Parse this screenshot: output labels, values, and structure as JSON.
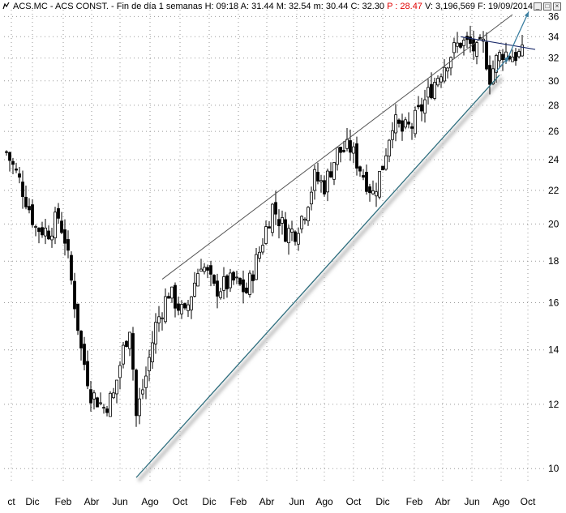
{
  "header": {
    "symbol": "ACS.MC - ACS CONST. - Fin de día 1 semanas",
    "h": "H: 09:18",
    "a": "A: 31.44",
    "m": "M: 32.54",
    "mn": "m: 30.44",
    "c": "C: 32.30",
    "p": "P : 28.47",
    "v": "V: 3,196,569",
    "f": "F: 19/09/2014"
  },
  "colors": {
    "price_bars": "#000000",
    "upper_line": "#555555",
    "support_line": "#2e6e7e",
    "arrow": "#3a7ea0",
    "neg_text": "#e00000"
  },
  "chart_data": {
    "type": "ohlc",
    "ylog": true,
    "ylim": [
      9.6,
      36.7
    ],
    "yticks": [
      10,
      12,
      14,
      16,
      18,
      20,
      22,
      24,
      26,
      28,
      30,
      32,
      34,
      36
    ],
    "xticks": [
      "Oct",
      "Dic",
      "Feb",
      "Abr",
      "Jun",
      "Ago",
      "Oct",
      "Dic",
      "Feb",
      "Abr",
      "Jun",
      "Ago",
      "Oct",
      "Dic",
      "Feb",
      "Abr",
      "Jun",
      "Ago",
      "Oct"
    ],
    "xticks_display": [
      "ct",
      "Dic",
      "Feb",
      "Abr",
      "Jun",
      "Ago",
      "Oct",
      "Dic",
      "Feb",
      "Abr",
      "Jun",
      "Ago",
      "Oct",
      "Dic",
      "Feb",
      "Abr",
      "Jun",
      "Ago",
      "Oct"
    ],
    "grid": true,
    "weeks": 159,
    "close_path": [
      [
        0,
        24.5
      ],
      [
        4,
        22.6
      ],
      [
        9,
        19.8
      ],
      [
        13,
        19.6
      ],
      [
        16,
        20.4
      ],
      [
        18,
        19.2
      ],
      [
        20,
        17.0
      ],
      [
        23,
        14.0
      ],
      [
        26,
        12.4
      ],
      [
        30,
        11.9
      ],
      [
        33,
        12.3
      ],
      [
        36,
        14.0
      ],
      [
        38,
        15.0
      ],
      [
        40,
        11.6
      ],
      [
        43,
        13.0
      ],
      [
        46,
        15.0
      ],
      [
        50,
        16.5
      ],
      [
        55,
        15.4
      ],
      [
        60,
        18.0
      ],
      [
        64,
        16.6
      ],
      [
        70,
        17.0
      ],
      [
        74,
        16.5
      ],
      [
        78,
        18.5
      ],
      [
        82,
        21.0
      ],
      [
        86,
        19.6
      ],
      [
        89,
        19.6
      ],
      [
        92,
        20.8
      ],
      [
        95,
        22.8
      ],
      [
        98,
        22.3
      ],
      [
        102,
        24.5
      ],
      [
        106,
        24.8
      ],
      [
        110,
        23.0
      ],
      [
        113,
        21.8
      ],
      [
        116,
        23.6
      ],
      [
        119,
        26.8
      ],
      [
        122,
        26.0
      ],
      [
        125,
        26.4
      ],
      [
        128,
        27.8
      ],
      [
        131,
        29.4
      ],
      [
        134,
        31.0
      ],
      [
        137,
        32.4
      ],
      [
        140,
        33.5
      ],
      [
        143,
        33.2
      ],
      [
        145,
        32.5
      ],
      [
        147,
        33.2
      ],
      [
        149,
        30.4
      ],
      [
        151,
        31.8
      ],
      [
        153,
        32.6
      ],
      [
        155,
        32.3
      ]
    ],
    "annotations": [
      {
        "type": "trendline",
        "name": "upper-resistance",
        "from": [
          48,
          17.1
        ],
        "to": [
          156,
          36.2
        ]
      },
      {
        "type": "trendline",
        "name": "lower-support",
        "from": [
          40,
          9.75
        ],
        "to": [
          152,
          30.5
        ]
      },
      {
        "type": "trendline",
        "name": "top-trendline",
        "from": [
          140,
          34.0
        ],
        "to": [
          163,
          32.8
        ]
      },
      {
        "type": "arrow",
        "name": "projection-arrow",
        "points": [
          [
            154,
            31.6
          ],
          [
            157,
            33.7
          ],
          [
            161,
            36.5
          ]
        ]
      },
      {
        "type": "arrow",
        "name": "small-arrow",
        "points": [
          [
            151,
            30.8
          ],
          [
            155,
            32.2
          ]
        ]
      }
    ]
  }
}
